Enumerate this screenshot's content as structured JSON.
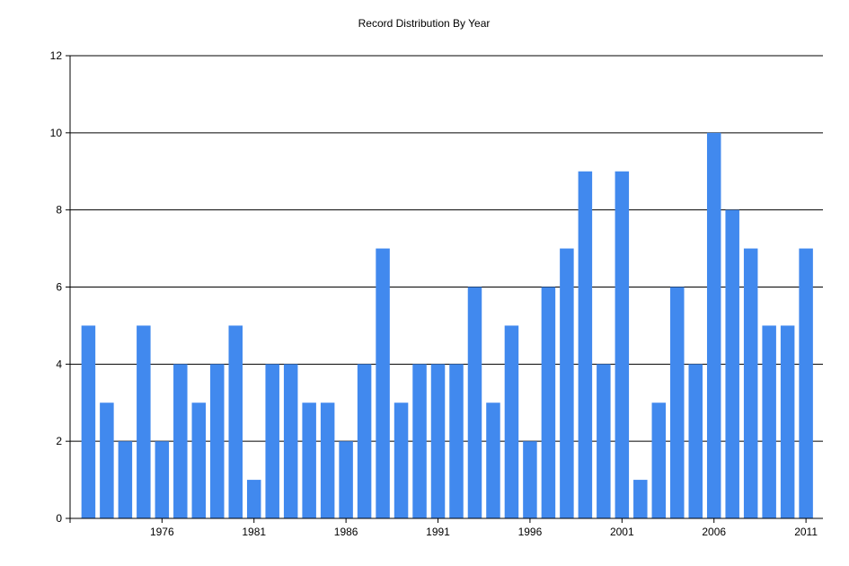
{
  "chart_data": {
    "type": "bar",
    "title": "Record Distribution By Year",
    "xlabel": "",
    "ylabel": "",
    "x": [
      1972,
      1973,
      1974,
      1975,
      1976,
      1977,
      1978,
      1979,
      1980,
      1981,
      1982,
      1983,
      1984,
      1985,
      1986,
      1987,
      1988,
      1989,
      1990,
      1991,
      1992,
      1993,
      1994,
      1995,
      1996,
      1997,
      1998,
      1999,
      2000,
      2001,
      2002,
      2003,
      2004,
      2005,
      2006,
      2007,
      2008,
      2009,
      2010,
      2011
    ],
    "values": [
      5,
      3,
      2,
      5,
      2,
      4,
      3,
      4,
      5,
      1,
      4,
      4,
      3,
      3,
      2,
      4,
      7,
      3,
      4,
      4,
      4,
      6,
      3,
      5,
      2,
      6,
      7,
      9,
      4,
      9,
      1,
      3,
      6,
      4,
      10,
      8,
      7,
      5,
      5,
      7
    ],
    "x_ticks": [
      "1976",
      "1981",
      "1986",
      "1991",
      "1996",
      "2001",
      "2006",
      "2011"
    ],
    "y_ticks": [
      "0",
      "2",
      "4",
      "6",
      "8",
      "10",
      "12"
    ],
    "ylim": [
      0,
      12
    ],
    "grid": "horizontal",
    "legend": "none",
    "bar_color": "#4189EE"
  }
}
